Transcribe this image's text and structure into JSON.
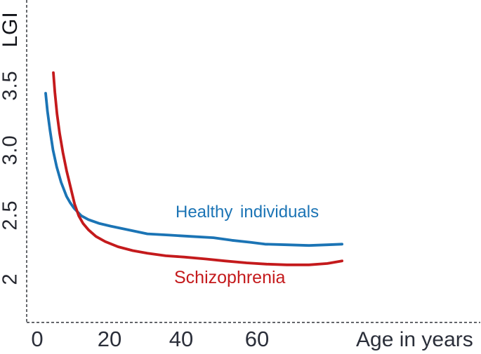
{
  "chart_data": {
    "type": "line",
    "title": "",
    "xlabel": "Age in years",
    "ylabel": "LGI",
    "x_ticks": [
      0,
      20,
      40,
      60
    ],
    "x_tick_labels": [
      "0",
      "20",
      "40",
      "60"
    ],
    "y_ticks": [
      2,
      2.5,
      3.0,
      3.5
    ],
    "y_tick_labels": [
      "2",
      "2.5",
      "3.0",
      "3.5"
    ],
    "xlim": [
      -3,
      120
    ],
    "ylim": [
      1.66,
      4.16
    ],
    "grid": false,
    "legend_position": "inline-labels-on-plot",
    "axis_style": "dashed",
    "axis_color": "#4d5056",
    "series": [
      {
        "name": "Healthy individuals",
        "color": "#1b74b5",
        "points": [
          [
            2.3,
            3.44
          ],
          [
            2.8,
            3.3
          ],
          [
            3.5,
            3.15
          ],
          [
            4.3,
            3.0
          ],
          [
            5.3,
            2.87
          ],
          [
            6.5,
            2.75
          ],
          [
            8,
            2.64
          ],
          [
            9,
            2.59
          ],
          [
            10,
            2.55
          ],
          [
            11,
            2.52
          ],
          [
            12,
            2.49
          ],
          [
            14,
            2.46
          ],
          [
            17,
            2.43
          ],
          [
            20,
            2.41
          ],
          [
            25,
            2.38
          ],
          [
            30,
            2.35
          ],
          [
            36,
            2.34
          ],
          [
            42,
            2.33
          ],
          [
            48,
            2.32
          ],
          [
            53,
            2.3
          ],
          [
            58,
            2.285
          ],
          [
            62,
            2.27
          ],
          [
            68,
            2.265
          ],
          [
            74,
            2.26
          ],
          [
            79,
            2.265
          ],
          [
            83,
            2.27
          ]
        ]
      },
      {
        "name": "Schizophrenia",
        "color": "#c41a1c",
        "points": [
          [
            4.4,
            3.6
          ],
          [
            4.8,
            3.45
          ],
          [
            5.4,
            3.28
          ],
          [
            6.1,
            3.13
          ],
          [
            7,
            2.98
          ],
          [
            8,
            2.84
          ],
          [
            9,
            2.72
          ],
          [
            10.2,
            2.58
          ],
          [
            11.3,
            2.49
          ],
          [
            12.5,
            2.43
          ],
          [
            14,
            2.38
          ],
          [
            16,
            2.33
          ],
          [
            18.5,
            2.29
          ],
          [
            22,
            2.25
          ],
          [
            26,
            2.22
          ],
          [
            30,
            2.2
          ],
          [
            35,
            2.18
          ],
          [
            40,
            2.17
          ],
          [
            46,
            2.155
          ],
          [
            51,
            2.14
          ],
          [
            57,
            2.125
          ],
          [
            62.5,
            2.115
          ],
          [
            68,
            2.11
          ],
          [
            74,
            2.11
          ],
          [
            79,
            2.12
          ],
          [
            83,
            2.14
          ]
        ]
      }
    ]
  }
}
